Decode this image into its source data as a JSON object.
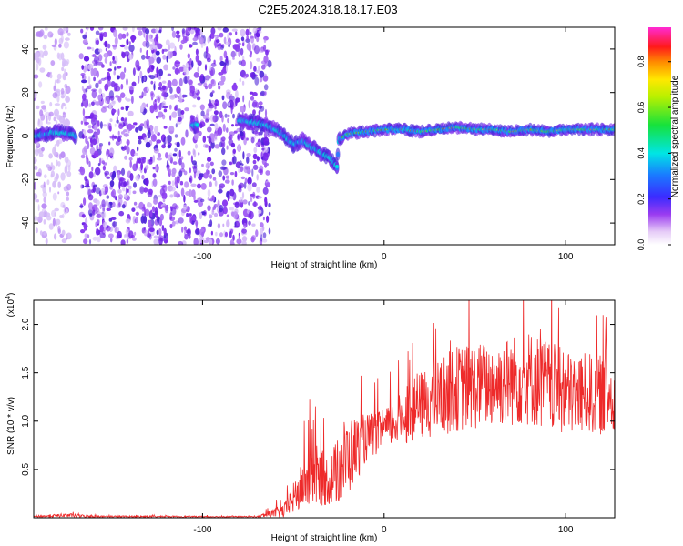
{
  "title": "C2E5.2024.318.18.17.E03",
  "colors": {
    "snr_line": "#ee2a2a",
    "axis": "#000000",
    "background": "#ffffff"
  },
  "chart_data": [
    {
      "type": "heatmap",
      "xlabel": "Height of straight line (km)",
      "ylabel": "Frequency (Hz)",
      "xlim": [
        -193,
        127
      ],
      "ylim": [
        -50,
        50
      ],
      "xticks": [
        -100,
        0,
        100
      ],
      "xtick_labels": [
        "-100",
        "0",
        "100"
      ],
      "yticks": [
        -40,
        -20,
        0,
        20,
        40
      ],
      "ytick_labels": [
        "-40",
        "-20",
        "0",
        "20",
        "40"
      ],
      "colorbar": {
        "label": "Normalized spectral amplitude",
        "range": [
          0,
          0.95
        ],
        "ticks": [
          0.0,
          0.2,
          0.4,
          0.6,
          0.8
        ],
        "tick_labels": [
          "0.0",
          "0.2",
          "0.4",
          "0.6",
          "0.8"
        ],
        "colormap": "rainbow (white-violet-blue-cyan-green-yellow-red-magenta)"
      },
      "noise_regions": [
        {
          "x": [
            -193,
            -173
          ],
          "density": "low"
        },
        {
          "x": [
            -173,
            -167
          ],
          "density": "gap"
        },
        {
          "x": [
            -167,
            -63
          ],
          "density": "high"
        }
      ],
      "ridge": [
        [
          -193,
          0
        ],
        [
          -185,
          1
        ],
        [
          -180,
          2
        ],
        [
          -175,
          1
        ],
        [
          -170,
          0
        ],
        [
          -105,
          5
        ],
        [
          -80,
          7
        ],
        [
          -70,
          6
        ],
        [
          -65,
          5
        ],
        [
          -60,
          3
        ],
        [
          -55,
          0
        ],
        [
          -50,
          -4
        ],
        [
          -45,
          -2
        ],
        [
          -40,
          -5
        ],
        [
          -35,
          -8
        ],
        [
          -30,
          -10
        ],
        [
          -26,
          -14
        ],
        [
          -25,
          -2
        ],
        [
          -20,
          1
        ],
        [
          -10,
          2
        ],
        [
          0,
          3
        ],
        [
          10,
          3
        ],
        [
          20,
          2
        ],
        [
          30,
          3
        ],
        [
          40,
          4
        ],
        [
          50,
          3
        ],
        [
          60,
          3
        ],
        [
          70,
          2
        ],
        [
          80,
          3
        ],
        [
          90,
          2
        ],
        [
          100,
          3
        ],
        [
          110,
          3
        ],
        [
          120,
          3
        ],
        [
          127,
          3
        ]
      ]
    },
    {
      "type": "line",
      "xlabel": "Height of straight line (km)",
      "ylabel": "SNR (10 * v/v)",
      "y_multiplier": "(x10",
      "y_multiplier_exp": "4",
      "y_multiplier_close": ")",
      "xlim": [
        -193,
        127
      ],
      "ylim": [
        0,
        2.25
      ],
      "xticks": [
        -100,
        0,
        100
      ],
      "xtick_labels": [
        "-100",
        "0",
        "100"
      ],
      "yticks": [
        0.5,
        1.0,
        1.5,
        2.0
      ],
      "ytick_labels": [
        "0.5",
        "1.0",
        "1.5",
        "2.0"
      ],
      "series": [
        {
          "values_envelope": [
            {
              "x": -193,
              "base": 0.01,
              "amp": 0.02
            },
            {
              "x": -175,
              "base": 0.02,
              "amp": 0.04
            },
            {
              "x": -160,
              "base": 0.01,
              "amp": 0.02
            },
            {
              "x": -70,
              "base": 0.01,
              "amp": 0.01
            },
            {
              "x": -55,
              "base": 0.05,
              "amp": 0.15
            },
            {
              "x": -45,
              "base": 0.25,
              "amp": 0.5
            },
            {
              "x": -40,
              "base": 0.35,
              "amp": 0.7
            },
            {
              "x": -30,
              "base": 0.3,
              "amp": 0.5
            },
            {
              "x": -22,
              "base": 0.45,
              "amp": 0.9
            },
            {
              "x": -10,
              "base": 0.75,
              "amp": 0.5
            },
            {
              "x": 0,
              "base": 0.85,
              "amp": 0.4
            },
            {
              "x": 20,
              "base": 1.05,
              "amp": 0.7
            },
            {
              "x": 40,
              "base": 1.2,
              "amp": 0.9
            },
            {
              "x": 60,
              "base": 1.25,
              "amp": 0.9
            },
            {
              "x": 80,
              "base": 1.3,
              "amp": 1.0
            },
            {
              "x": 100,
              "base": 1.15,
              "amp": 0.9
            },
            {
              "x": 127,
              "base": 1.15,
              "amp": 0.8
            }
          ]
        }
      ]
    }
  ]
}
